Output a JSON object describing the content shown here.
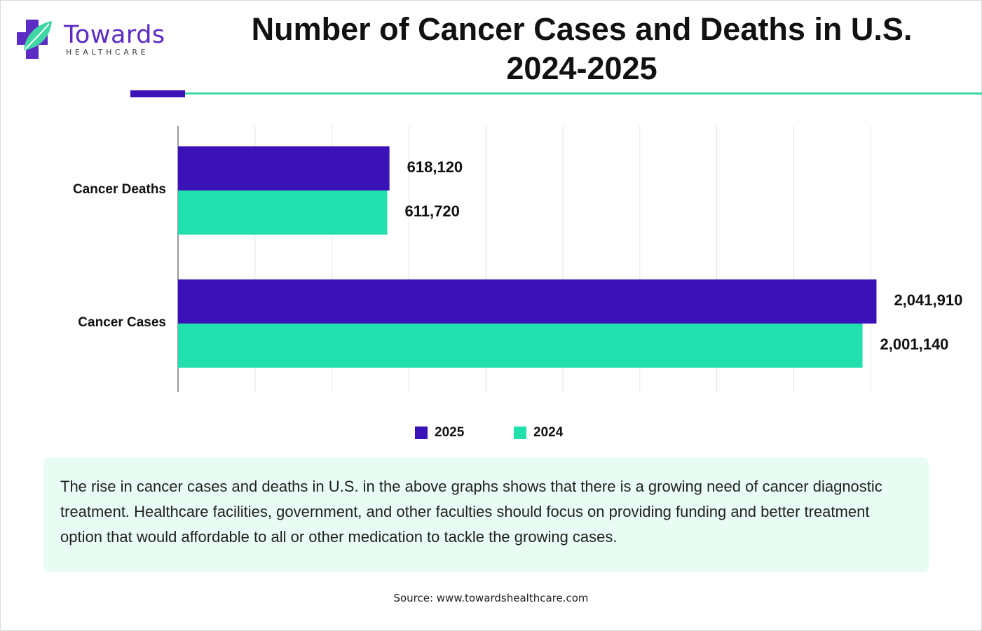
{
  "brand": {
    "name": "Towards",
    "tagline": "HEALTHCARE",
    "colors": {
      "purple": "#5b2bc4",
      "teal": "#3fd6a6"
    }
  },
  "title_lines": [
    "Number of Cancer Cases and Deaths in U.S.",
    "2024-2025"
  ],
  "chart_data": {
    "type": "bar",
    "orientation": "horizontal",
    "title": "Number of Cancer Cases and Deaths in U.S. 2024-2025",
    "categories": [
      "Cancer Deaths",
      "Cancer Cases"
    ],
    "series": [
      {
        "name": "2025",
        "color": "#3b12b8",
        "values": [
          618120,
          2041910
        ],
        "labels": [
          "618,120",
          "2,041,910"
        ]
      },
      {
        "name": "2024",
        "color": "#22e0ad",
        "values": [
          611720,
          2001140
        ],
        "labels": [
          "611,720",
          "2,001,140"
        ]
      }
    ],
    "xlim": [
      0,
      2250000
    ],
    "xlabel": "",
    "ylabel": "",
    "grid": true,
    "legend": "bottom-center",
    "legend_order": [
      "2025",
      "2024"
    ]
  },
  "note": "The rise in cancer cases and deaths in U.S. in the above graphs shows that there is a growing need of cancer diagnostic treatment. Healthcare facilities, government, and other faculties should focus on providing funding and better treatment option that would affordable to all or other medication to tackle the growing cases.",
  "source": "Source: www.towardshealthcare.com"
}
